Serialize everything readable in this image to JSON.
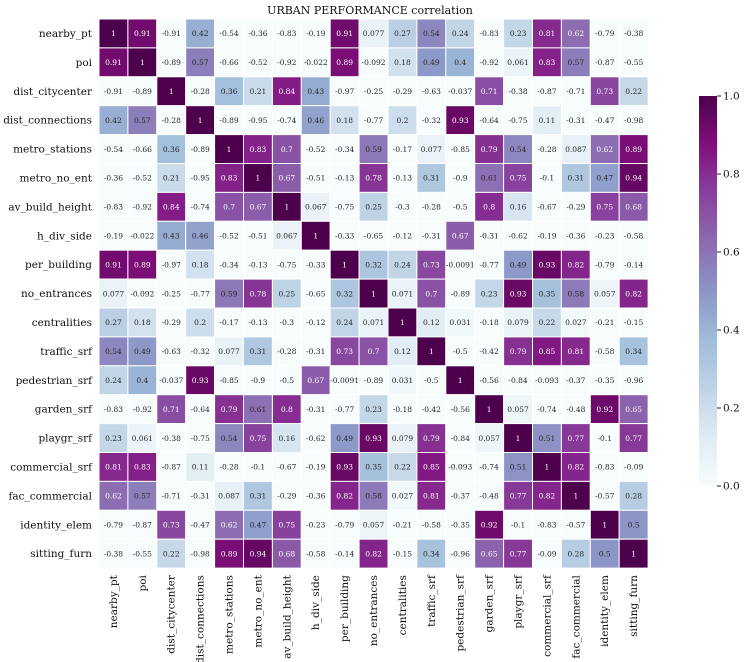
{
  "chart_data": {
    "type": "heatmap",
    "title": "URBAN PERFORMANCE correlation",
    "labels": [
      "nearby_pt",
      "poi",
      "dist_citycenter",
      "dist_connections",
      "metro_stations",
      "metro_no_ent",
      "av_build_height",
      "h_div_side",
      "per_building",
      "no_entrances",
      "centralities",
      "traffic_srf",
      "pedestrian_srf",
      "garden_srf",
      "playgr_srf",
      "commercial_srf",
      "fac_commercial",
      "identity_elem",
      "sitting_furn"
    ],
    "matrix": [
      [
        1,
        0.91,
        -0.91,
        0.42,
        -0.54,
        -0.36,
        -0.83,
        -0.19,
        0.91,
        0.077,
        0.27,
        0.54,
        0.24,
        -0.83,
        0.23,
        0.81,
        0.62,
        -0.79,
        -0.38
      ],
      [
        0.91,
        1,
        -0.89,
        0.57,
        -0.66,
        -0.52,
        -0.92,
        -0.022,
        0.89,
        -0.092,
        0.18,
        0.49,
        0.4,
        -0.92,
        0.061,
        0.83,
        0.57,
        -0.87,
        -0.55
      ],
      [
        -0.91,
        -0.89,
        1,
        -0.28,
        0.36,
        0.21,
        0.84,
        0.43,
        -0.97,
        -0.25,
        -0.29,
        -0.63,
        -0.037,
        0.71,
        -0.38,
        -0.87,
        -0.71,
        0.73,
        0.22
      ],
      [
        0.42,
        0.57,
        -0.28,
        1,
        -0.89,
        -0.95,
        -0.74,
        0.46,
        0.18,
        -0.77,
        0.2,
        -0.32,
        0.93,
        -0.64,
        -0.75,
        0.11,
        -0.31,
        -0.47,
        -0.98
      ],
      [
        -0.54,
        -0.66,
        0.36,
        -0.89,
        1,
        0.83,
        0.7,
        -0.52,
        -0.34,
        0.59,
        -0.17,
        0.077,
        -0.85,
        0.79,
        0.54,
        -0.28,
        0.087,
        0.62,
        0.89
      ],
      [
        -0.36,
        -0.52,
        0.21,
        -0.95,
        0.83,
        1,
        0.67,
        -0.51,
        -0.13,
        0.78,
        -0.13,
        0.31,
        -0.9,
        0.61,
        0.75,
        -0.1,
        0.31,
        0.47,
        0.94
      ],
      [
        -0.83,
        -0.92,
        0.84,
        -0.74,
        0.7,
        0.67,
        1,
        0.067,
        -0.75,
        0.25,
        -0.3,
        -0.28,
        -0.5,
        0.8,
        0.16,
        -0.67,
        -0.29,
        0.75,
        0.68
      ],
      [
        -0.19,
        -0.022,
        0.43,
        0.46,
        -0.52,
        -0.51,
        0.067,
        1,
        -0.33,
        -0.65,
        -0.12,
        -0.31,
        0.67,
        -0.31,
        -0.62,
        -0.19,
        -0.36,
        -0.23,
        -0.58
      ],
      [
        0.91,
        0.89,
        -0.97,
        0.18,
        -0.34,
        -0.13,
        -0.75,
        -0.33,
        1,
        0.32,
        0.24,
        0.73,
        -0.0091,
        -0.77,
        0.49,
        0.93,
        0.82,
        -0.79,
        -0.14
      ],
      [
        0.077,
        -0.092,
        -0.25,
        -0.77,
        0.59,
        0.78,
        0.25,
        -0.65,
        0.32,
        1,
        0.071,
        0.7,
        -0.89,
        0.23,
        0.93,
        0.35,
        0.58,
        0.057,
        0.82
      ],
      [
        0.27,
        0.18,
        -0.29,
        0.2,
        -0.17,
        -0.13,
        -0.3,
        -0.12,
        0.24,
        0.071,
        1,
        0.12,
        0.031,
        -0.18,
        0.079,
        0.22,
        0.027,
        -0.21,
        -0.15
      ],
      [
        0.54,
        0.49,
        -0.63,
        -0.32,
        0.077,
        0.31,
        -0.28,
        -0.31,
        0.73,
        0.7,
        0.12,
        1,
        -0.5,
        -0.42,
        0.79,
        0.85,
        0.81,
        -0.58,
        0.34
      ],
      [
        0.24,
        0.4,
        -0.037,
        0.93,
        -0.85,
        -0.9,
        -0.5,
        0.67,
        -0.0091,
        -0.89,
        0.031,
        -0.5,
        1,
        -0.56,
        -0.84,
        -0.093,
        -0.37,
        -0.35,
        -0.96
      ],
      [
        -0.83,
        -0.92,
        0.71,
        -0.64,
        0.79,
        0.61,
        0.8,
        -0.31,
        -0.77,
        0.23,
        -0.18,
        -0.42,
        -0.56,
        1,
        0.057,
        -0.74,
        -0.48,
        0.92,
        0.65
      ],
      [
        0.23,
        0.061,
        -0.38,
        -0.75,
        0.54,
        0.75,
        0.16,
        -0.62,
        0.49,
        0.93,
        0.079,
        0.79,
        -0.84,
        0.057,
        1,
        0.51,
        0.77,
        -0.1,
        0.77
      ],
      [
        0.81,
        0.83,
        -0.87,
        0.11,
        -0.28,
        -0.1,
        -0.67,
        -0.19,
        0.93,
        0.35,
        0.22,
        0.85,
        -0.093,
        -0.74,
        0.51,
        1,
        0.82,
        -0.83,
        -0.09
      ],
      [
        0.62,
        0.57,
        -0.71,
        -0.31,
        0.087,
        0.31,
        -0.29,
        -0.36,
        0.82,
        0.58,
        0.027,
        0.81,
        -0.37,
        -0.48,
        0.77,
        0.82,
        1,
        -0.57,
        0.28
      ],
      [
        -0.79,
        -0.87,
        0.73,
        -0.47,
        0.62,
        0.47,
        0.75,
        -0.23,
        -0.79,
        0.057,
        -0.21,
        -0.58,
        -0.35,
        0.92,
        -0.1,
        -0.83,
        -0.57,
        1,
        0.5
      ],
      [
        -0.38,
        -0.55,
        0.22,
        -0.98,
        0.89,
        0.94,
        0.68,
        -0.58,
        -0.14,
        0.82,
        -0.15,
        0.34,
        -0.96,
        0.65,
        0.77,
        -0.09,
        0.28,
        0.5,
        1
      ]
    ],
    "color_range": [
      0,
      1
    ],
    "colorbar_ticks": [
      0.0,
      0.2,
      0.4,
      0.6,
      0.8,
      1.0
    ],
    "colorbar_tick_labels": [
      "0.0",
      "0.2",
      "0.4",
      "0.6",
      "0.8",
      "1.0"
    ],
    "colormap": "BuPu",
    "colormap_stops": [
      "#f7fcfd",
      "#e0ecf4",
      "#bfd3e6",
      "#9ebcda",
      "#8c96c6",
      "#8c6bb1",
      "#88419d",
      "#810f7c",
      "#4d004b"
    ],
    "grid_line_color": "#ffffff",
    "colorbar_location": "right"
  }
}
